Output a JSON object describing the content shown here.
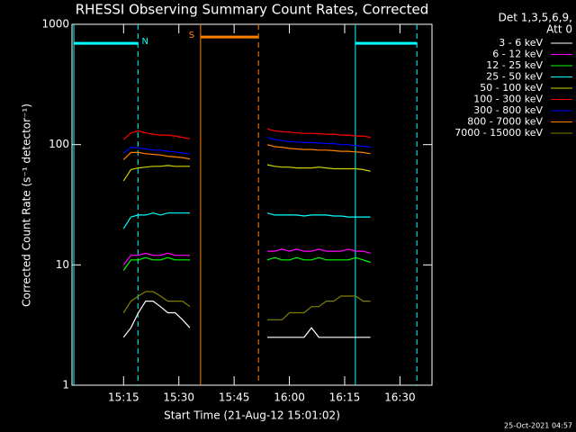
{
  "chart_data": {
    "type": "line",
    "title": "RHESSI Observing Summary Count Rates, Corrected",
    "xlabel": "Start Time (21-Aug-12 15:01:02)",
    "ylabel": "Corrected Count Rate (s⁻¹ detector⁻¹)",
    "legend_title": [
      "Det 1,3,5,6,9,",
      "Att 0"
    ],
    "footer": "25-Oct-2021 04:57",
    "log_y": true,
    "xlim": [
      1.0,
      98.7
    ],
    "ylim": [
      1,
      1000
    ],
    "xticks": [
      {
        "value": 15,
        "label": "15:15"
      },
      {
        "value": 30,
        "label": "15:30"
      },
      {
        "value": 45,
        "label": "15:45"
      },
      {
        "value": 60,
        "label": "16:00"
      },
      {
        "value": 75,
        "label": "16:15"
      },
      {
        "value": 90,
        "label": "16:30"
      }
    ],
    "yticks": [
      1,
      10,
      100,
      1000
    ],
    "x": [
      15,
      17,
      19,
      21,
      23,
      25,
      27,
      29,
      31,
      33,
      44,
      54,
      56,
      58,
      60,
      62,
      64,
      66,
      68,
      70,
      72,
      74,
      76,
      78,
      80,
      82
    ],
    "series": [
      {
        "name": "3 - 6 keV",
        "color": "#ffffff",
        "values": [
          2.5,
          3,
          4,
          5,
          5,
          4.5,
          4,
          4,
          3.5,
          3,
          null,
          2.5,
          2.5,
          2.5,
          2.5,
          2.5,
          2.5,
          3,
          2.5,
          2.5,
          2.5,
          2.5,
          2.5,
          2.5,
          2.5,
          2.5
        ]
      },
      {
        "name": "6 - 12 keV",
        "color": "#ff00ff",
        "values": [
          10,
          12,
          12,
          12.5,
          12,
          12,
          12.5,
          12,
          12,
          12,
          null,
          13,
          13,
          13.5,
          13,
          13.5,
          13,
          13,
          13.5,
          13,
          13,
          13,
          13.5,
          13,
          13,
          12.5
        ]
      },
      {
        "name": "12 - 25 keV",
        "color": "#00ff00",
        "values": [
          9,
          11,
          11,
          11.5,
          11,
          11,
          11.5,
          11,
          11,
          11,
          null,
          11,
          11.5,
          11,
          11,
          11.5,
          11,
          11,
          11.5,
          11,
          11,
          11,
          11,
          11.5,
          11,
          10.5
        ]
      },
      {
        "name": "25 - 50 keV",
        "color": "#00ffff",
        "values": [
          20,
          25,
          26,
          26,
          27,
          26,
          27,
          27,
          27,
          27,
          null,
          27,
          26,
          26,
          26,
          26,
          25.5,
          26,
          26,
          26,
          25.5,
          25.5,
          25,
          25,
          25,
          25
        ]
      },
      {
        "name": "50 - 100 keV",
        "color": "#d2d200",
        "values": [
          50,
          62,
          64,
          65,
          66,
          66,
          67,
          66,
          66,
          66,
          null,
          68,
          66,
          65,
          65,
          64,
          64,
          64,
          65,
          64,
          63,
          63,
          63,
          63,
          62,
          60
        ]
      },
      {
        "name": "100 - 300 keV",
        "color": "#ff0000",
        "values": [
          110,
          125,
          130,
          125,
          122,
          120,
          120,
          118,
          115,
          112,
          null,
          135,
          130,
          128,
          127,
          125,
          124,
          124,
          123,
          122,
          122,
          120,
          120,
          118,
          118,
          115
        ]
      },
      {
        "name": "300 - 800 keV",
        "color": "#0000ff",
        "values": [
          85,
          95,
          94,
          92,
          90,
          90,
          88,
          87,
          85,
          84,
          null,
          115,
          110,
          108,
          106,
          105,
          104,
          104,
          103,
          102,
          102,
          100,
          100,
          98,
          97,
          95
        ]
      },
      {
        "name": "800 - 7000 keV",
        "color": "#ff8000",
        "values": [
          75,
          86,
          86,
          84,
          83,
          82,
          80,
          79,
          78,
          76,
          null,
          100,
          96,
          95,
          93,
          92,
          91,
          91,
          90,
          90,
          89,
          88,
          88,
          87,
          86,
          84
        ]
      },
      {
        "name": "7000 - 15000 keV",
        "color": "#808000",
        "values": [
          4,
          5,
          5.5,
          6,
          6,
          5.5,
          5,
          5,
          5,
          4.5,
          null,
          3.5,
          3.5,
          3.5,
          4,
          4,
          4,
          4.5,
          4.5,
          5,
          5,
          5.5,
          5.5,
          5.5,
          5,
          5
        ]
      }
    ],
    "night": {
      "label": "N",
      "color": "#00ffff",
      "level": 695,
      "intervals": [
        [
          1.5,
          18.9
        ],
        [
          77.9,
          94.6
        ]
      ]
    },
    "saa": {
      "label": "S",
      "color": "#ff8000",
      "level": 784,
      "intervals": [
        [
          35.9,
          51.6
        ]
      ]
    }
  }
}
